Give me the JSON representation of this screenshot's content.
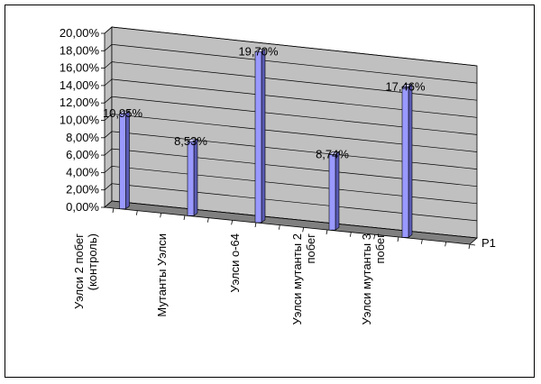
{
  "chart_data": {
    "type": "bar",
    "style": "3d-column",
    "categories": [
      [
        "Уэлси 2 побег",
        "(контроль)"
      ],
      [
        "Мутанты Уэлси"
      ],
      [
        "Уэлси о-64"
      ],
      [
        "Уэлси мутанты 2",
        "побег"
      ],
      [
        "Уэлси мутанты 3",
        "побег"
      ]
    ],
    "series": [
      {
        "name": "Р1",
        "values": [
          10.95,
          8.53,
          19.7,
          8.74,
          17.46
        ],
        "labels": [
          "10,95%",
          "8,53%",
          "19,70%",
          "8,74%",
          "17,46%"
        ],
        "color": "#9999ff"
      }
    ],
    "ylim": [
      0,
      20
    ],
    "yticks": [
      "0,00%",
      "2,00%",
      "4,00%",
      "6,00%",
      "8,00%",
      "10,00%",
      "12,00%",
      "14,00%",
      "16,00%",
      "18,00%",
      "20,00%"
    ],
    "grid": true,
    "wall_color": "#c0c0c0",
    "floor_color": "#808080"
  }
}
